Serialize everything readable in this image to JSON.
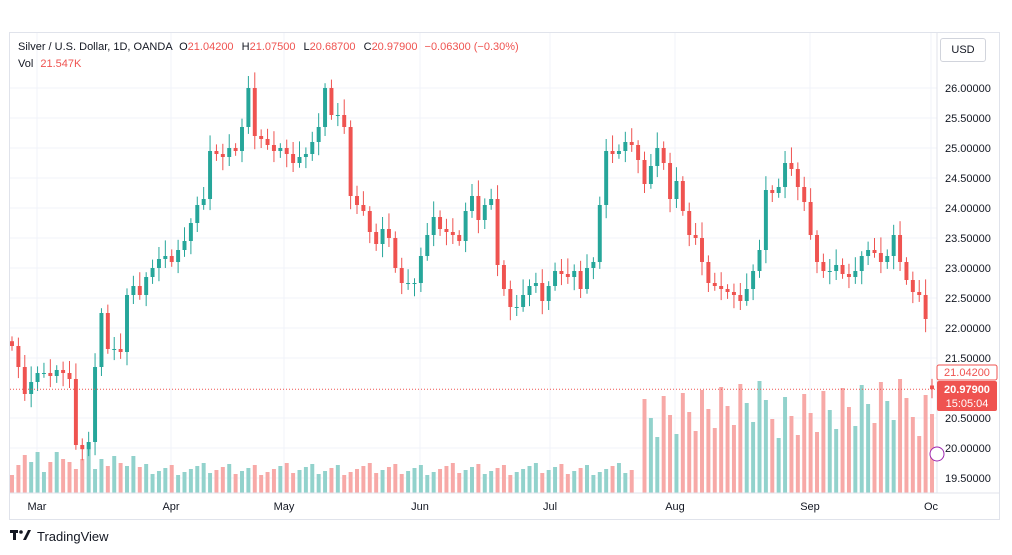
{
  "legend": {
    "symbol": "Silver / U.S. Dollar, 1D, OANDA",
    "open_label": "O",
    "open_value": "21.04200",
    "high_label": "H",
    "high_value": "21.07500",
    "low_label": "L",
    "low_value": "20.68700",
    "close_label": "C",
    "close_value": "20.97900",
    "change": "−0.06300 (−0.30%)",
    "vol_label": "Vol",
    "vol_value": "21.547K"
  },
  "currency_label": "USD",
  "price_tags": {
    "open": "21.04200",
    "close": "20.97900",
    "countdown": "15:05:04"
  },
  "footer": {
    "logo_icon": "tradingview-logo-icon",
    "brand": "TradingView"
  },
  "colors": {
    "up": "#26a69a",
    "down": "#ef5350",
    "vol_up": "#92d2cc",
    "vol_down": "#f7a9a7",
    "grid": "#f0f3fa"
  },
  "chart_data": {
    "type": "candlestick",
    "y_ticks": [
      "26.00000",
      "25.50000",
      "25.00000",
      "24.50000",
      "24.00000",
      "23.50000",
      "23.00000",
      "22.50000",
      "22.00000",
      "21.50000",
      "20.50000",
      "20.00000",
      "19.50000"
    ],
    "ylim": [
      19.4,
      26.4
    ],
    "x_ticks": [
      "Mar",
      "Apr",
      "May",
      "Jun",
      "Jul",
      "Aug",
      "Sep",
      "Oc"
    ],
    "grid": true,
    "candles_close": [
      21.7,
      21.35,
      20.9,
      21.1,
      21.25,
      21.25,
      21.2,
      21.3,
      21.25,
      21.15,
      20.05,
      19.98,
      20.1,
      21.35,
      22.25,
      21.65,
      21.65,
      21.6,
      22.55,
      22.7,
      22.55,
      22.85,
      23.0,
      23.15,
      23.2,
      23.1,
      23.3,
      23.45,
      23.75,
      24.05,
      24.15,
      24.95,
      24.9,
      24.85,
      25.0,
      24.95,
      25.35,
      26.0,
      25.2,
      25.15,
      25.05,
      24.95,
      25.0,
      24.9,
      24.75,
      24.85,
      24.9,
      25.1,
      25.35,
      26.0,
      25.55,
      25.55,
      25.35,
      24.2,
      24.05,
      23.95,
      23.6,
      23.4,
      23.65,
      23.5,
      23.0,
      22.75,
      22.75,
      22.75,
      23.2,
      23.55,
      23.85,
      23.65,
      23.6,
      23.55,
      23.45,
      23.95,
      24.2,
      23.8,
      24.05,
      24.15,
      23.05,
      22.65,
      22.35,
      22.35,
      22.55,
      22.7,
      22.75,
      22.45,
      22.7,
      22.95,
      22.9,
      22.85,
      22.95,
      22.65,
      23.0,
      23.1,
      24.05,
      24.95,
      24.9,
      24.95,
      25.1,
      25.05,
      24.8,
      24.4,
      24.7,
      25.0,
      24.75,
      24.15,
      24.45,
      23.95,
      23.55,
      23.5,
      23.1,
      22.75,
      22.7,
      22.65,
      22.6,
      22.55,
      22.45,
      22.65,
      22.95,
      23.3,
      24.3,
      24.25,
      24.35,
      24.75,
      24.65,
      24.35,
      24.1,
      23.55,
      23.1,
      22.95,
      22.95,
      23.05,
      22.9,
      22.85,
      22.95,
      23.2,
      23.3,
      23.25,
      23.1,
      23.2,
      23.55,
      23.1,
      22.8,
      22.6,
      22.55,
      22.15,
      20.98
    ],
    "volume_range": [
      0,
      47
    ]
  }
}
